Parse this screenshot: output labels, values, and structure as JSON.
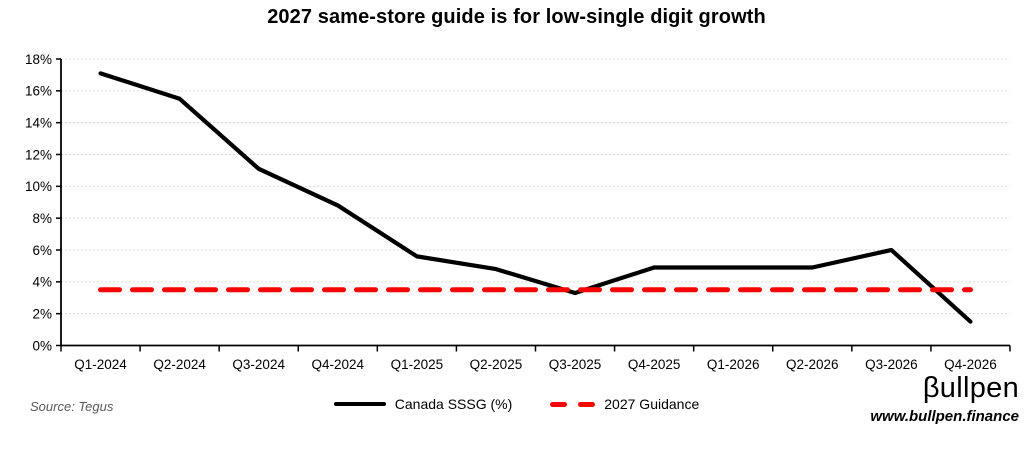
{
  "title": "2027 same-store guide is for low-single digit growth",
  "source_note": "Source: Tegus",
  "logo": {
    "name": "βullpen",
    "url": "www.bullpen.finance"
  },
  "legend": {
    "series1": "Canada SSSG (%)",
    "series2": "2027 Guidance"
  },
  "colors": {
    "series_line": "#000000",
    "guidance_line": "#ff0000",
    "gridline": "#d9d9d9",
    "axis": "#000000",
    "source_text": "#595959"
  },
  "chart_data": {
    "type": "line",
    "title": "2027 same-store guide is for low-single digit growth",
    "categories": [
      "Q1-2024",
      "Q2-2024",
      "Q3-2024",
      "Q4-2024",
      "Q1-2025",
      "Q2-2025",
      "Q3-2025",
      "Q4-2025",
      "Q1-2026",
      "Q2-2026",
      "Q3-2026",
      "Q4-2026"
    ],
    "series": [
      {
        "name": "Canada SSSG (%)",
        "style": "solid",
        "color": "#000000",
        "values": [
          17.1,
          15.5,
          11.1,
          8.8,
          5.6,
          4.8,
          3.3,
          4.9,
          4.9,
          4.9,
          6.0,
          1.5
        ]
      },
      {
        "name": "2027 Guidance",
        "style": "dashed",
        "color": "#ff0000",
        "values": [
          3.5,
          3.5,
          3.5,
          3.5,
          3.5,
          3.5,
          3.5,
          3.5,
          3.5,
          3.5,
          3.5,
          3.5
        ]
      }
    ],
    "xlabel": "",
    "ylabel": "",
    "ylim": [
      0,
      18
    ],
    "ytick_step": 2,
    "ytick_format": "percent",
    "grid": "horizontal-dotted",
    "legend_position": "bottom"
  }
}
